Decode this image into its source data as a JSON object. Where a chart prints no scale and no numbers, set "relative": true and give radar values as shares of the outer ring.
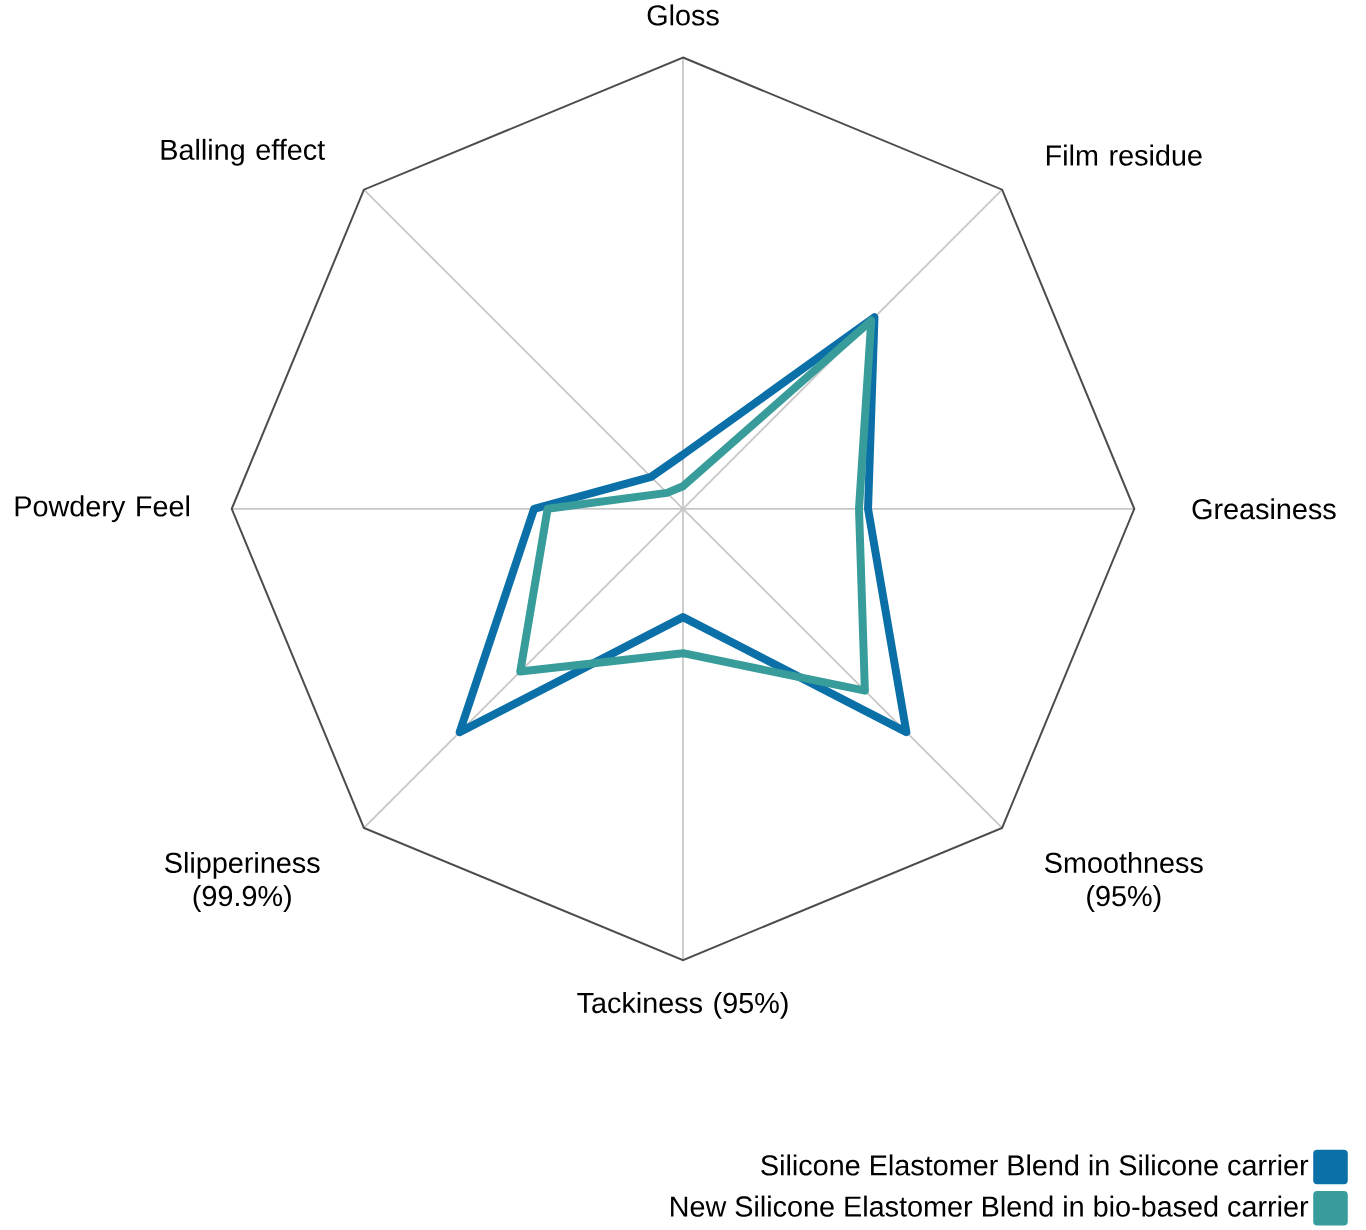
{
  "chart_data": {
    "type": "radar",
    "relative": true,
    "legend": "bottom right",
    "categories": [
      "Gloss",
      "Film residue",
      "Greasiness",
      "Smoothness (95%)",
      "Tackiness (95%)",
      "Slipperiness (99.9%)",
      "Powdery Feel",
      "Balling effect"
    ],
    "series": [
      {
        "name": "Silicone Elastomer Blend in Silicone carrier",
        "color": "#0b6fa8",
        "values": [
          0.12,
          0.6,
          0.41,
          0.7,
          0.24,
          0.7,
          0.33,
          0.1
        ]
      },
      {
        "name": "New Silicone Elastomer Blend in bio-based carrier",
        "color": "#379c9a",
        "values": [
          0.05,
          0.59,
          0.39,
          0.57,
          0.32,
          0.51,
          0.3,
          0.05
        ]
      }
    ]
  }
}
